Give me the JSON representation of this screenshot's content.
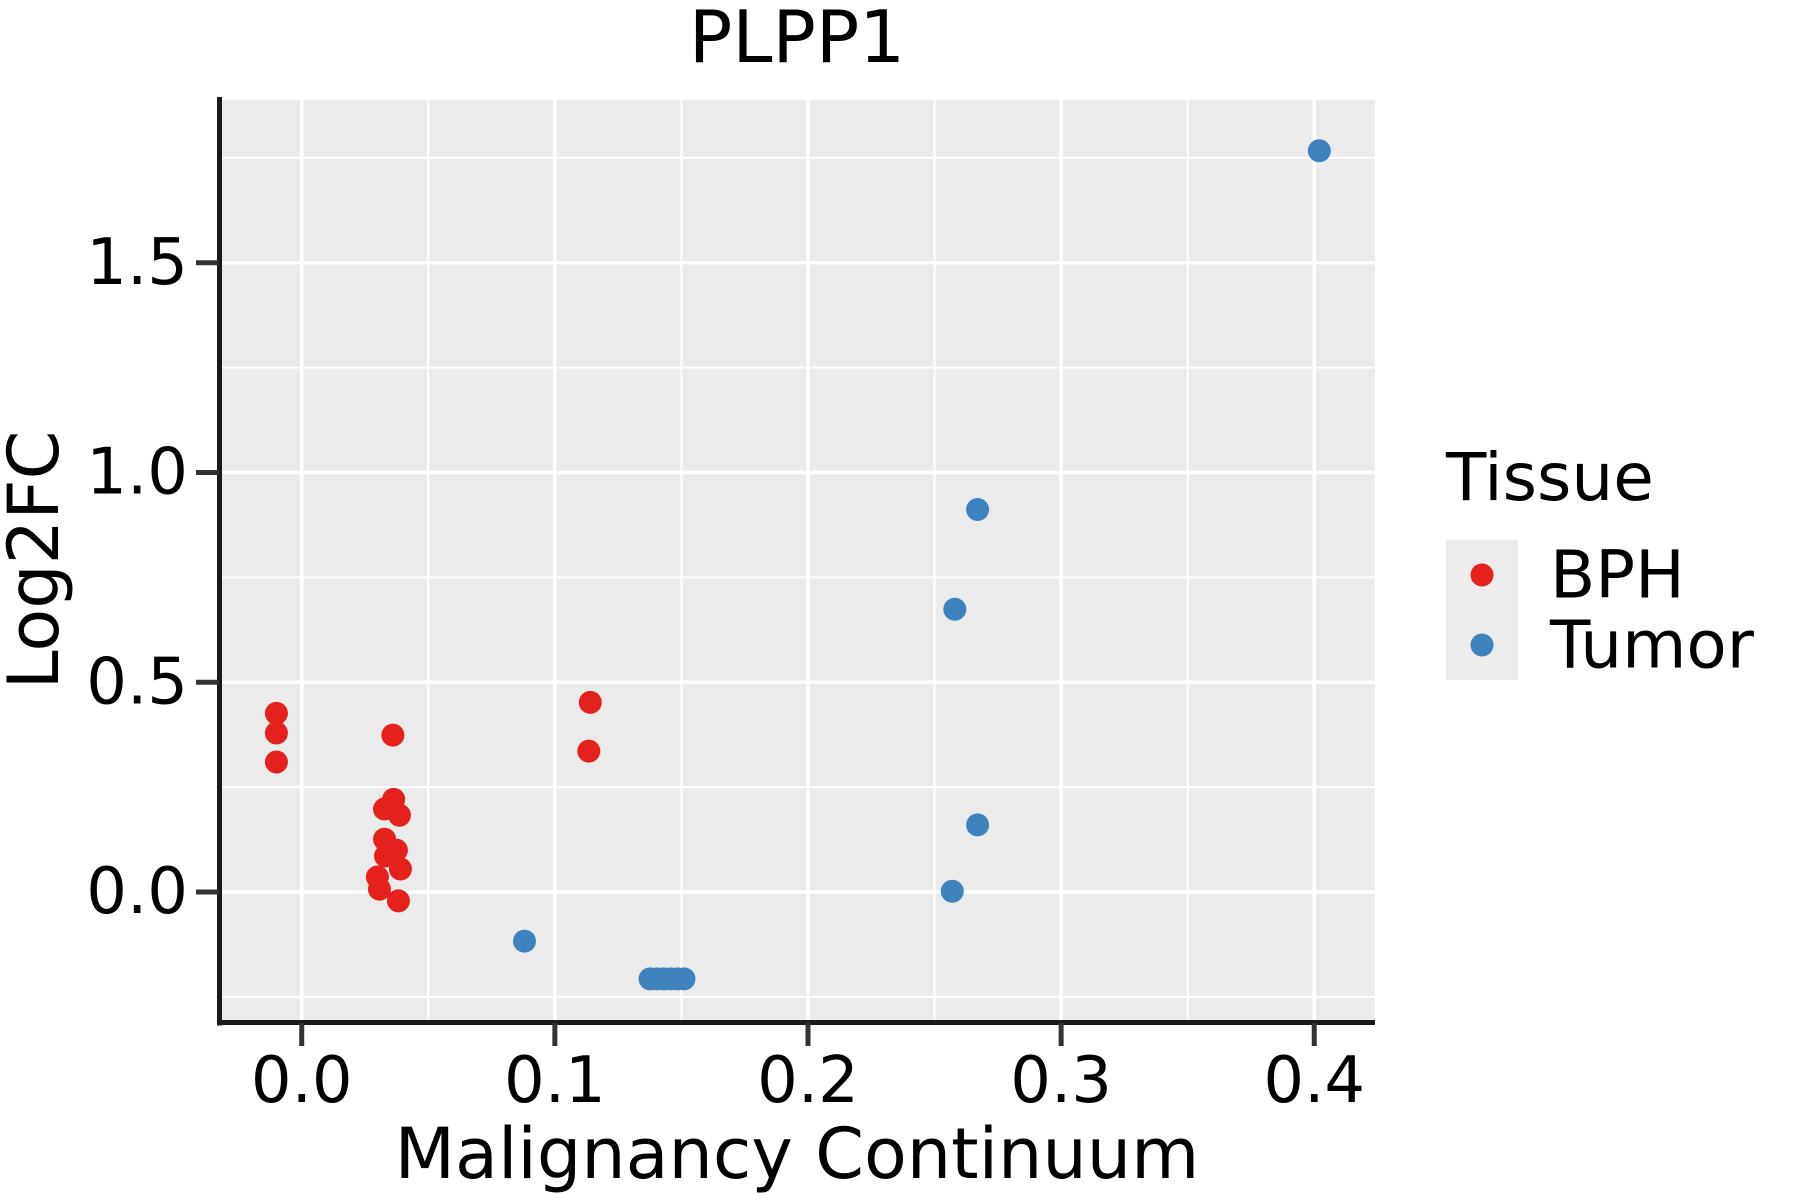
{
  "title": "PLPP1",
  "legend": {
    "title": "Tissue",
    "items": [
      {
        "label": "BPH",
        "color": "#E4211C"
      },
      {
        "label": "Tumor",
        "color": "#3F83BE"
      }
    ]
  },
  "colors": {
    "panel_background": "#EBEBEB",
    "grid": "#FFFFFF",
    "axis_line": "#1A1A1A",
    "tick_mark": "#333333",
    "text": "#000000",
    "legend_key_background": "#ECECEC"
  },
  "chart_data": {
    "type": "scatter",
    "title": "PLPP1",
    "xlabel": "Malignancy Continuum",
    "ylabel": "Log2FC",
    "xlim": [
      -0.0315,
      0.424
    ],
    "ylim": [
      -0.305,
      1.888
    ],
    "x_ticks": {
      "values": [
        0.0,
        0.1,
        0.2,
        0.3,
        0.4
      ],
      "labels": [
        "0.0",
        "0.1",
        "0.2",
        "0.3",
        "0.4"
      ]
    },
    "y_ticks": {
      "values": [
        0.0,
        0.5,
        1.0,
        1.5
      ],
      "labels": [
        "0.0",
        "0.5",
        "1.0",
        "1.5"
      ]
    },
    "x_minor": [
      0.05,
      0.15,
      0.25,
      0.35
    ],
    "y_minor": [
      -0.25,
      0.25,
      0.75,
      1.25,
      1.75
    ],
    "grid": true,
    "legend_position": "right",
    "point_radius_px": 11.5,
    "series": [
      {
        "name": "BPH",
        "color": "#E4211C",
        "points": [
          [
            -0.01,
            0.426
          ],
          [
            -0.01,
            0.379
          ],
          [
            -0.01,
            0.31
          ],
          [
            0.036,
            0.374
          ],
          [
            0.0363,
            0.221
          ],
          [
            0.0327,
            0.198
          ],
          [
            0.0386,
            0.183
          ],
          [
            0.0327,
            0.126
          ],
          [
            0.0374,
            0.1
          ],
          [
            0.0331,
            0.086
          ],
          [
            0.039,
            0.055
          ],
          [
            0.0299,
            0.036
          ],
          [
            0.0307,
            0.007
          ],
          [
            0.0382,
            -0.021
          ],
          [
            0.114,
            0.452
          ],
          [
            0.1134,
            0.336
          ]
        ]
      },
      {
        "name": "Tumor",
        "color": "#3F83BE",
        "points": [
          [
            0.088,
            -0.117
          ],
          [
            0.1376,
            -0.207
          ],
          [
            0.1403,
            -0.207
          ],
          [
            0.143,
            -0.207
          ],
          [
            0.1457,
            -0.207
          ],
          [
            0.1484,
            -0.207
          ],
          [
            0.151,
            -0.207
          ],
          [
            0.258,
            0.674
          ],
          [
            0.267,
            0.912
          ],
          [
            0.267,
            0.16
          ],
          [
            0.257,
            0.002
          ],
          [
            0.402,
            1.767
          ]
        ]
      }
    ]
  }
}
